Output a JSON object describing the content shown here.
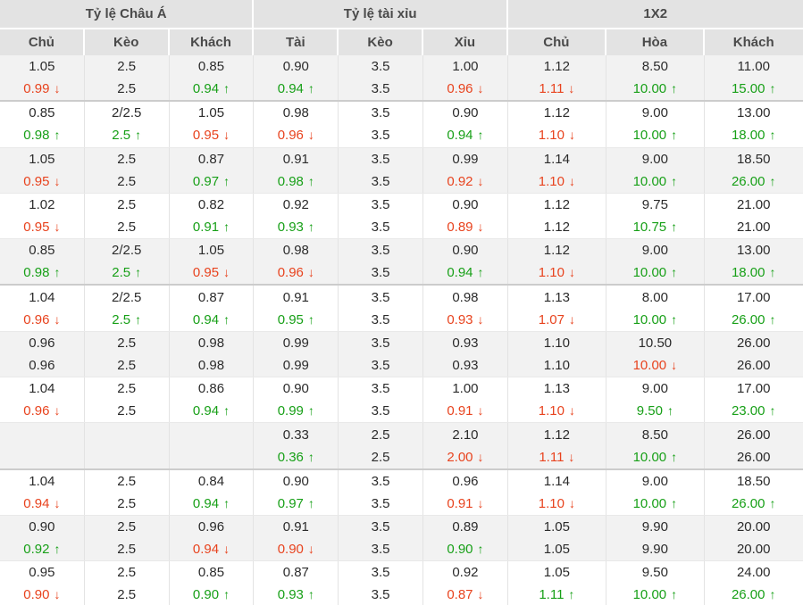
{
  "colors": {
    "up": "#18a018",
    "down": "#e8431e"
  },
  "icons": {
    "up_arrow": "↑",
    "down_arrow": "↓"
  },
  "table": {
    "groups": [
      {
        "label": "Tỷ lệ Châu Á",
        "columns": [
          "Chủ",
          "Kèo",
          "Khách"
        ]
      },
      {
        "label": "Tỷ lệ tài xỉu",
        "columns": [
          "Tài",
          "Kèo",
          "Xỉu"
        ]
      },
      {
        "label": "1X2",
        "columns": [
          "Chủ",
          "Hòa",
          "Khách"
        ]
      }
    ],
    "rows": [
      {
        "separator_after": true,
        "cells": [
          {
            "top": "1.05",
            "bottom": "0.99",
            "trend": "down"
          },
          {
            "top": "2.5",
            "bottom": "2.5",
            "trend": "none"
          },
          {
            "top": "0.85",
            "bottom": "0.94",
            "trend": "up"
          },
          {
            "top": "0.90",
            "bottom": "0.94",
            "trend": "up"
          },
          {
            "top": "3.5",
            "bottom": "3.5",
            "trend": "none"
          },
          {
            "top": "1.00",
            "bottom": "0.96",
            "trend": "down"
          },
          {
            "top": "1.12",
            "bottom": "1.11",
            "trend": "down"
          },
          {
            "top": "8.50",
            "bottom": "10.00",
            "trend": "up"
          },
          {
            "top": "11.00",
            "bottom": "15.00",
            "trend": "up"
          }
        ]
      },
      {
        "separator_after": false,
        "cells": [
          {
            "top": "0.85",
            "bottom": "0.98",
            "trend": "up"
          },
          {
            "top": "2/2.5",
            "bottom": "2.5",
            "trend": "up"
          },
          {
            "top": "1.05",
            "bottom": "0.95",
            "trend": "down"
          },
          {
            "top": "0.98",
            "bottom": "0.96",
            "trend": "down"
          },
          {
            "top": "3.5",
            "bottom": "3.5",
            "trend": "none"
          },
          {
            "top": "0.90",
            "bottom": "0.94",
            "trend": "up"
          },
          {
            "top": "1.12",
            "bottom": "1.10",
            "trend": "down"
          },
          {
            "top": "9.00",
            "bottom": "10.00",
            "trend": "up"
          },
          {
            "top": "13.00",
            "bottom": "18.00",
            "trend": "up"
          }
        ]
      },
      {
        "separator_after": false,
        "cells": [
          {
            "top": "1.05",
            "bottom": "0.95",
            "trend": "down"
          },
          {
            "top": "2.5",
            "bottom": "2.5",
            "trend": "none"
          },
          {
            "top": "0.87",
            "bottom": "0.97",
            "trend": "up"
          },
          {
            "top": "0.91",
            "bottom": "0.98",
            "trend": "up"
          },
          {
            "top": "3.5",
            "bottom": "3.5",
            "trend": "none"
          },
          {
            "top": "0.99",
            "bottom": "0.92",
            "trend": "down"
          },
          {
            "top": "1.14",
            "bottom": "1.10",
            "trend": "down"
          },
          {
            "top": "9.00",
            "bottom": "10.00",
            "trend": "up"
          },
          {
            "top": "18.50",
            "bottom": "26.00",
            "trend": "up"
          }
        ]
      },
      {
        "separator_after": false,
        "cells": [
          {
            "top": "1.02",
            "bottom": "0.95",
            "trend": "down"
          },
          {
            "top": "2.5",
            "bottom": "2.5",
            "trend": "none"
          },
          {
            "top": "0.82",
            "bottom": "0.91",
            "trend": "up"
          },
          {
            "top": "0.92",
            "bottom": "0.93",
            "trend": "up"
          },
          {
            "top": "3.5",
            "bottom": "3.5",
            "trend": "none"
          },
          {
            "top": "0.90",
            "bottom": "0.89",
            "trend": "down"
          },
          {
            "top": "1.12",
            "bottom": "1.12",
            "trend": "none"
          },
          {
            "top": "9.75",
            "bottom": "10.75",
            "trend": "up"
          },
          {
            "top": "21.00",
            "bottom": "21.00",
            "trend": "none"
          }
        ]
      },
      {
        "separator_after": true,
        "cells": [
          {
            "top": "0.85",
            "bottom": "0.98",
            "trend": "up"
          },
          {
            "top": "2/2.5",
            "bottom": "2.5",
            "trend": "up"
          },
          {
            "top": "1.05",
            "bottom": "0.95",
            "trend": "down"
          },
          {
            "top": "0.98",
            "bottom": "0.96",
            "trend": "down"
          },
          {
            "top": "3.5",
            "bottom": "3.5",
            "trend": "none"
          },
          {
            "top": "0.90",
            "bottom": "0.94",
            "trend": "up"
          },
          {
            "top": "1.12",
            "bottom": "1.10",
            "trend": "down"
          },
          {
            "top": "9.00",
            "bottom": "10.00",
            "trend": "up"
          },
          {
            "top": "13.00",
            "bottom": "18.00",
            "trend": "up"
          }
        ]
      },
      {
        "separator_after": false,
        "cells": [
          {
            "top": "1.04",
            "bottom": "0.96",
            "trend": "down"
          },
          {
            "top": "2/2.5",
            "bottom": "2.5",
            "trend": "up"
          },
          {
            "top": "0.87",
            "bottom": "0.94",
            "trend": "up"
          },
          {
            "top": "0.91",
            "bottom": "0.95",
            "trend": "up"
          },
          {
            "top": "3.5",
            "bottom": "3.5",
            "trend": "none"
          },
          {
            "top": "0.98",
            "bottom": "0.93",
            "trend": "down"
          },
          {
            "top": "1.13",
            "bottom": "1.07",
            "trend": "down"
          },
          {
            "top": "8.00",
            "bottom": "10.00",
            "trend": "up"
          },
          {
            "top": "17.00",
            "bottom": "26.00",
            "trend": "up"
          }
        ]
      },
      {
        "separator_after": false,
        "cells": [
          {
            "top": "0.96",
            "bottom": "0.96",
            "trend": "none"
          },
          {
            "top": "2.5",
            "bottom": "2.5",
            "trend": "none"
          },
          {
            "top": "0.98",
            "bottom": "0.98",
            "trend": "none"
          },
          {
            "top": "0.99",
            "bottom": "0.99",
            "trend": "none"
          },
          {
            "top": "3.5",
            "bottom": "3.5",
            "trend": "none"
          },
          {
            "top": "0.93",
            "bottom": "0.93",
            "trend": "none"
          },
          {
            "top": "1.10",
            "bottom": "1.10",
            "trend": "none"
          },
          {
            "top": "10.50",
            "bottom": "10.00",
            "trend": "down"
          },
          {
            "top": "26.00",
            "bottom": "26.00",
            "trend": "none"
          }
        ]
      },
      {
        "separator_after": false,
        "cells": [
          {
            "top": "1.04",
            "bottom": "0.96",
            "trend": "down"
          },
          {
            "top": "2.5",
            "bottom": "2.5",
            "trend": "none"
          },
          {
            "top": "0.86",
            "bottom": "0.94",
            "trend": "up"
          },
          {
            "top": "0.90",
            "bottom": "0.99",
            "trend": "up"
          },
          {
            "top": "3.5",
            "bottom": "3.5",
            "trend": "none"
          },
          {
            "top": "1.00",
            "bottom": "0.91",
            "trend": "down"
          },
          {
            "top": "1.13",
            "bottom": "1.10",
            "trend": "down"
          },
          {
            "top": "9.00",
            "bottom": "9.50",
            "trend": "up"
          },
          {
            "top": "17.00",
            "bottom": "23.00",
            "trend": "up"
          }
        ]
      },
      {
        "separator_after": true,
        "cells": [
          {
            "top": "",
            "bottom": "",
            "trend": "none"
          },
          {
            "top": "",
            "bottom": "",
            "trend": "none"
          },
          {
            "top": "",
            "bottom": "",
            "trend": "none"
          },
          {
            "top": "0.33",
            "bottom": "0.36",
            "trend": "up"
          },
          {
            "top": "2.5",
            "bottom": "2.5",
            "trend": "none"
          },
          {
            "top": "2.10",
            "bottom": "2.00",
            "trend": "down"
          },
          {
            "top": "1.12",
            "bottom": "1.11",
            "trend": "down"
          },
          {
            "top": "8.50",
            "bottom": "10.00",
            "trend": "up"
          },
          {
            "top": "26.00",
            "bottom": "26.00",
            "trend": "none"
          }
        ]
      },
      {
        "separator_after": false,
        "cells": [
          {
            "top": "1.04",
            "bottom": "0.94",
            "trend": "down"
          },
          {
            "top": "2.5",
            "bottom": "2.5",
            "trend": "none"
          },
          {
            "top": "0.84",
            "bottom": "0.94",
            "trend": "up"
          },
          {
            "top": "0.90",
            "bottom": "0.97",
            "trend": "up"
          },
          {
            "top": "3.5",
            "bottom": "3.5",
            "trend": "none"
          },
          {
            "top": "0.96",
            "bottom": "0.91",
            "trend": "down"
          },
          {
            "top": "1.14",
            "bottom": "1.10",
            "trend": "down"
          },
          {
            "top": "9.00",
            "bottom": "10.00",
            "trend": "up"
          },
          {
            "top": "18.50",
            "bottom": "26.00",
            "trend": "up"
          }
        ]
      },
      {
        "separator_after": false,
        "cells": [
          {
            "top": "0.90",
            "bottom": "0.92",
            "trend": "up"
          },
          {
            "top": "2.5",
            "bottom": "2.5",
            "trend": "none"
          },
          {
            "top": "0.96",
            "bottom": "0.94",
            "trend": "down"
          },
          {
            "top": "0.91",
            "bottom": "0.90",
            "trend": "down"
          },
          {
            "top": "3.5",
            "bottom": "3.5",
            "trend": "none"
          },
          {
            "top": "0.89",
            "bottom": "0.90",
            "trend": "up"
          },
          {
            "top": "1.05",
            "bottom": "1.05",
            "trend": "none"
          },
          {
            "top": "9.90",
            "bottom": "9.90",
            "trend": "none"
          },
          {
            "top": "20.00",
            "bottom": "20.00",
            "trend": "none"
          }
        ]
      },
      {
        "separator_after": false,
        "cells": [
          {
            "top": "0.95",
            "bottom": "0.90",
            "trend": "down"
          },
          {
            "top": "2.5",
            "bottom": "2.5",
            "trend": "none"
          },
          {
            "top": "0.85",
            "bottom": "0.90",
            "trend": "up"
          },
          {
            "top": "0.87",
            "bottom": "0.93",
            "trend": "up"
          },
          {
            "top": "3.5",
            "bottom": "3.5",
            "trend": "none"
          },
          {
            "top": "0.92",
            "bottom": "0.87",
            "trend": "down"
          },
          {
            "top": "1.05",
            "bottom": "1.11",
            "trend": "up"
          },
          {
            "top": "9.50",
            "bottom": "10.00",
            "trend": "up"
          },
          {
            "top": "24.00",
            "bottom": "26.00",
            "trend": "up"
          }
        ]
      }
    ]
  }
}
